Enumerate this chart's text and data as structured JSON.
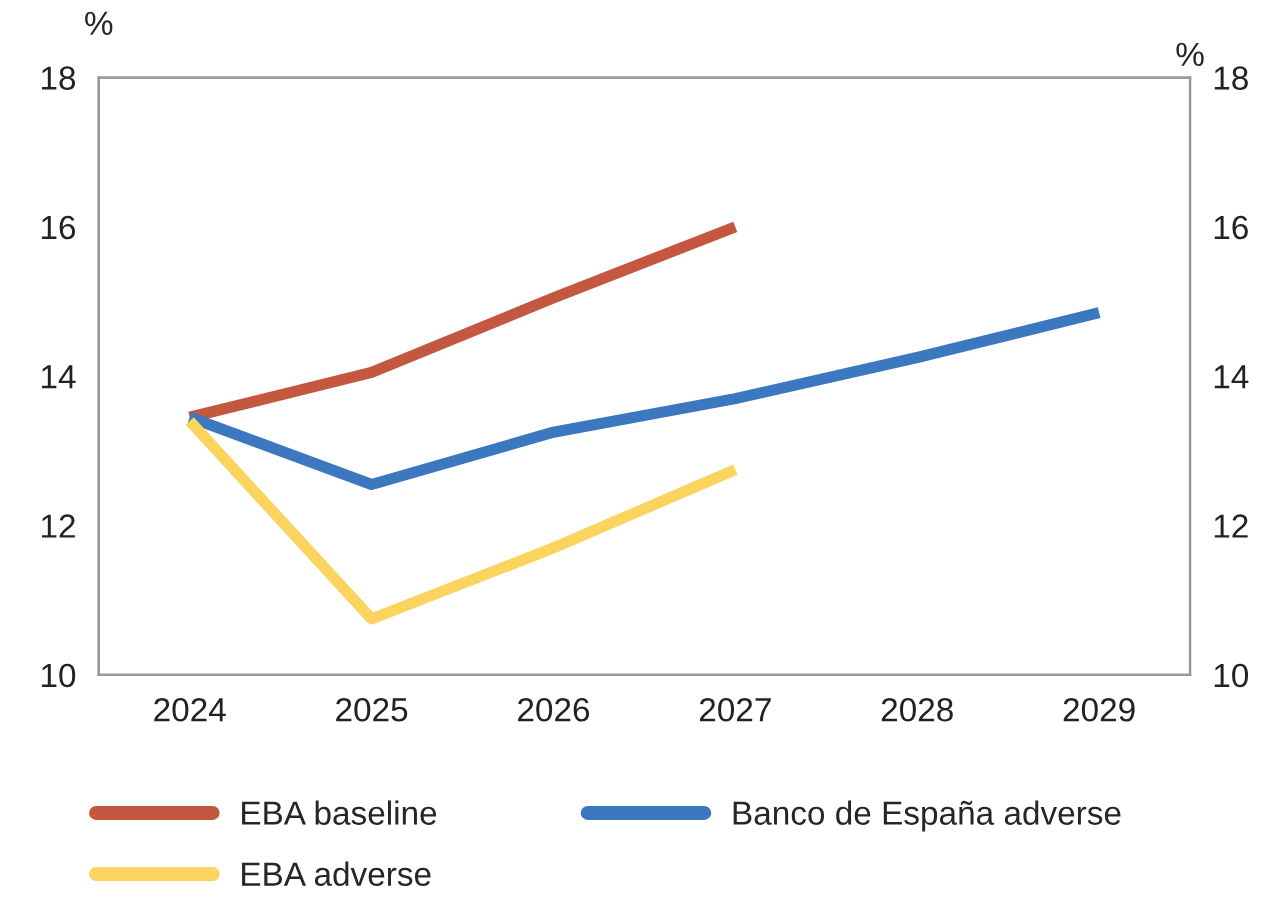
{
  "chart_data": {
    "type": "line",
    "ylabel": "%",
    "y2label": "%",
    "categories": [
      "2024",
      "2025",
      "2026",
      "2027",
      "2028",
      "2029"
    ],
    "series": [
      {
        "name": "EBA baseline",
        "color": "#c4573f",
        "values": [
          13.45,
          14.05,
          15.05,
          16.0,
          null,
          null
        ]
      },
      {
        "name": "Banco de España adverse",
        "color": "#3b78c0",
        "values": [
          13.45,
          12.55,
          13.25,
          13.7,
          14.25,
          14.85
        ]
      },
      {
        "name": "EBA adverse",
        "color": "#fbd35f",
        "values": [
          13.4,
          10.75,
          11.7,
          12.75,
          null,
          null
        ]
      }
    ],
    "ylim": [
      10,
      18
    ],
    "yticks": [
      10,
      12,
      14,
      16,
      18
    ],
    "y2lim": [
      10,
      18
    ],
    "y2ticks": [
      10,
      12,
      14,
      16,
      18
    ],
    "grid": false,
    "legend": "bottom",
    "marker": "none",
    "line_style": "solid"
  }
}
